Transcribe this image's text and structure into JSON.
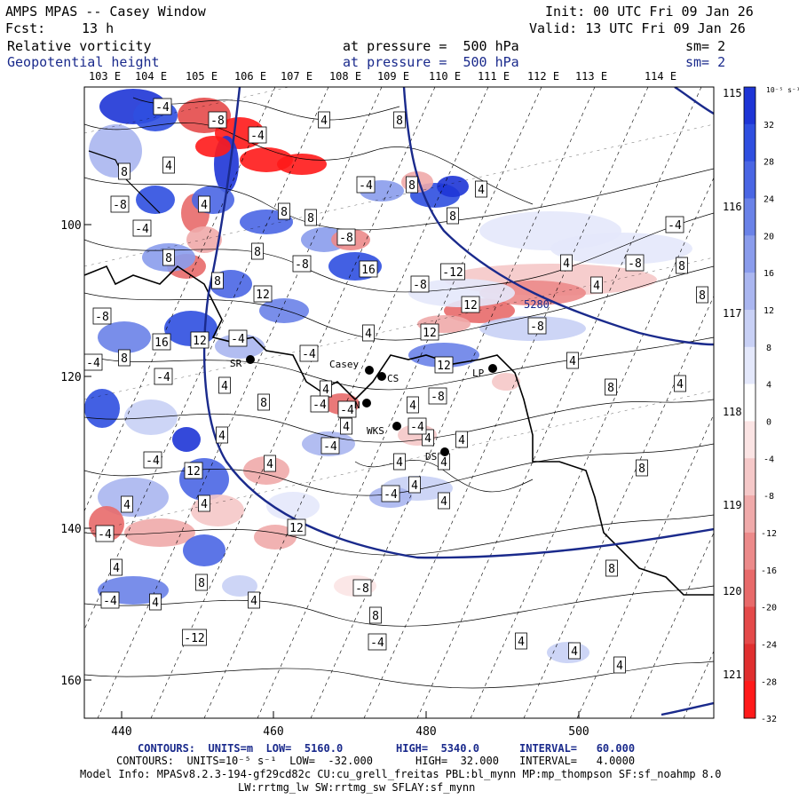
{
  "header": {
    "title": "AMPS MPAS -- Casey Window",
    "fcst_label": "Fcst:",
    "fcst_value": "13 h",
    "init": "Init: 00 UTC Fri 09 Jan 26",
    "valid": "Valid: 13 UTC Fri 09 Jan 26",
    "field1_name": "Relative vorticity",
    "field1_level": "at pressure =  500 hPa",
    "field1_sm": "sm= 2",
    "field2_name": "Geopotential height",
    "field2_level": "at pressure =  500 hPa",
    "field2_sm": "sm= 2"
  },
  "colors": {
    "navy": "#1a2a8c",
    "contour": "#000000",
    "positive_max": "#1f3cd8",
    "negative_max": "#ff1a1a"
  },
  "map": {
    "top_lon_labels": [
      "103 E",
      "104 E",
      "105 E",
      "106 E",
      "107 E",
      "108 E",
      "109 E",
      "110 E",
      "111 E",
      "112 E",
      "113 E",
      "114 E"
    ],
    "right_lon_labels": [
      "115 E",
      "116 E",
      "117 E",
      "118 E",
      "119 E",
      "120 E",
      "121 E"
    ],
    "x_ticks": [
      "440",
      "460",
      "480",
      "500"
    ],
    "y_ticks": [
      "100",
      "120",
      "140",
      "160"
    ],
    "stations": [
      {
        "label": "SR"
      },
      {
        "label": "Casey"
      },
      {
        "label": "CS"
      },
      {
        "label": "LP"
      },
      {
        "label": "N"
      },
      {
        "label": "WKS"
      },
      {
        "label": "DS"
      }
    ],
    "height_contour_label": "5280",
    "contour_labels": [
      "-4",
      "-8",
      "4",
      "8",
      "-4",
      "4",
      "8",
      "-4",
      "8",
      "4",
      "-8",
      "4",
      "8",
      "8",
      "8",
      "-4",
      "-8",
      "8",
      "8",
      "16",
      "-8",
      "8",
      "-4",
      "-8",
      "4",
      "8",
      "-12",
      "-8",
      "4",
      "8",
      "12",
      "-8",
      "12",
      "16",
      "12",
      "-4",
      "-8",
      "4",
      "12",
      "8",
      "-4",
      "-4",
      "12",
      "4",
      "-4",
      "4",
      "8",
      "4",
      "-8",
      "4",
      "8",
      "-4",
      "4",
      "-4",
      "4",
      "-4",
      "12",
      "4",
      "8",
      "4",
      "4",
      "-4",
      "4",
      "4",
      "12",
      "-4",
      "4",
      "8",
      "-8",
      "8",
      "-4",
      "4",
      "4",
      "8",
      "-12",
      "4",
      "4",
      "4",
      "-4",
      "4",
      "4",
      "4",
      "-4",
      "4",
      "4",
      "-4"
    ]
  },
  "colorbar": {
    "unit_label": "10⁻⁵ s⁻¹",
    "tick_labels": [
      "32",
      "28",
      "24",
      "20",
      "16",
      "12",
      "8",
      "4",
      "0",
      "-4",
      "-8",
      "-12",
      "-16",
      "-20",
      "-24",
      "-28",
      "-32"
    ],
    "colors": [
      "#1e35d6",
      "#2f4fe0",
      "#4a66e4",
      "#6a82e8",
      "#8a9cec",
      "#aab6f0",
      "#c8d0f5",
      "#e4e8fb",
      "#ffffff",
      "#fbe4e4",
      "#f5c8c8",
      "#f0aaaa",
      "#ec8a8a",
      "#e86a6a",
      "#e44a4a",
      "#e02f2f",
      "#ff1a1a"
    ]
  },
  "footer": {
    "line1_parts": [
      "CONTOURS:  UNITS=m  LOW=  5160.0",
      "HIGH=  5340.0",
      "INTERVAL=   60.000"
    ],
    "line2_parts": [
      "CONTOURS:  UNITS=10⁻⁵ s⁻¹  LOW=  -32.000",
      "HIGH=  32.000",
      "INTERVAL=   4.0000"
    ],
    "model_info": "Model Info: MPASv8.2.3-194-gf29cd82c CU:cu_grell_freitas PBL:bl_mynn MP:mp_thompson SF:sf_noahmp 8.0",
    "model_info2": "LW:rrtmg_lw SW:rrtmg_sw SFLAY:sf_mynn"
  }
}
